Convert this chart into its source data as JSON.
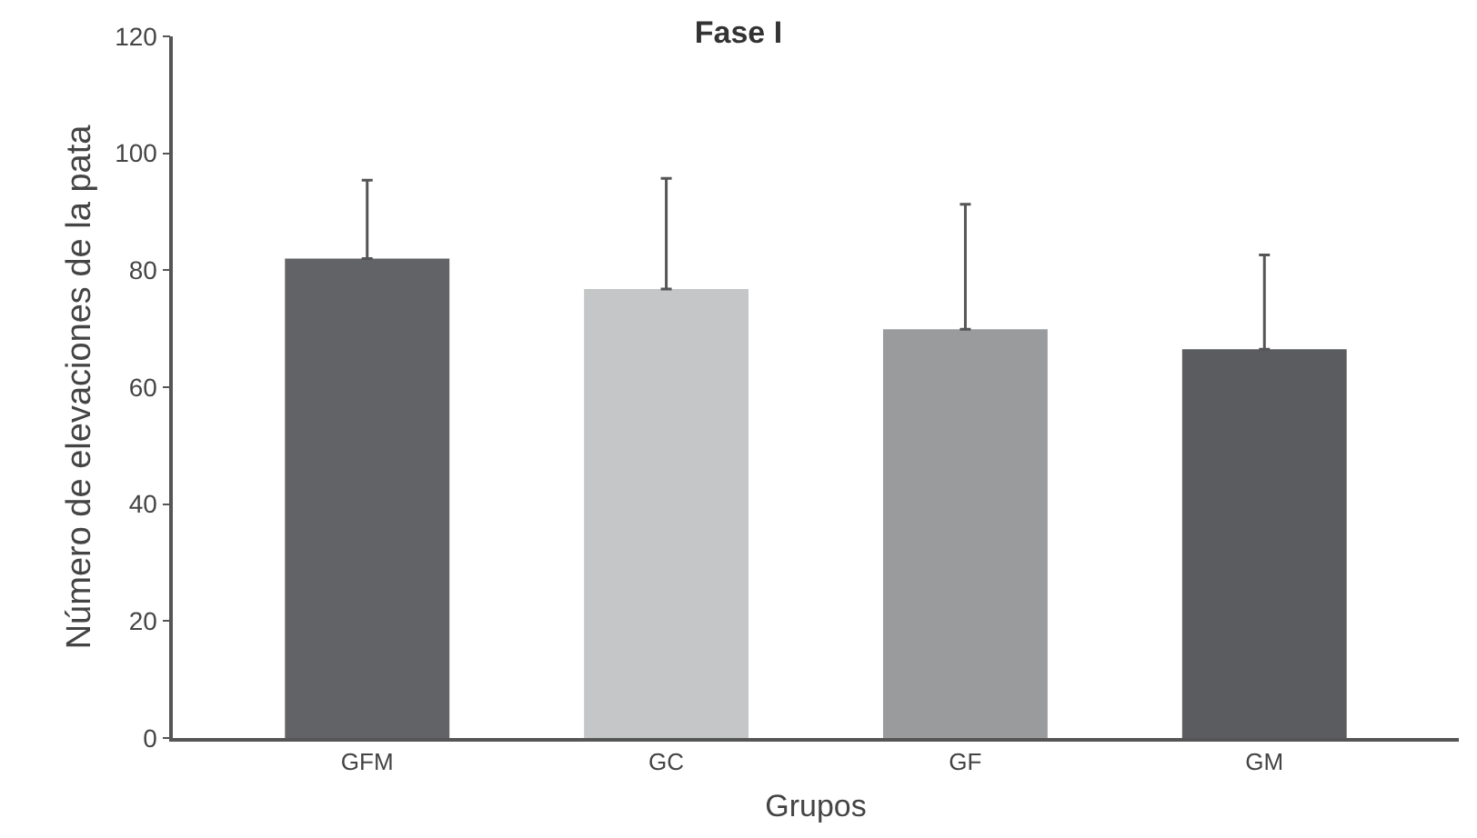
{
  "chart_data": {
    "type": "bar",
    "title": "Fase I",
    "xlabel": "Grupos",
    "ylabel": "Número de elevaciones de la pata",
    "categories": [
      "GFM",
      "GC",
      "GF",
      "GM"
    ],
    "values": [
      82,
      76.8,
      69.9,
      66.5
    ],
    "errors": [
      [
        82,
        95.4
      ],
      [
        76.8,
        95.7
      ],
      [
        69.9,
        91.3
      ],
      [
        66.5,
        82.6
      ]
    ],
    "colors": [
      "#616366",
      "#c5c6c7",
      "#9a9b9c",
      "#5b5c5f"
    ],
    "ylim": [
      0,
      120
    ],
    "yticks": [
      0,
      20,
      40,
      60,
      80,
      100,
      120
    ]
  }
}
